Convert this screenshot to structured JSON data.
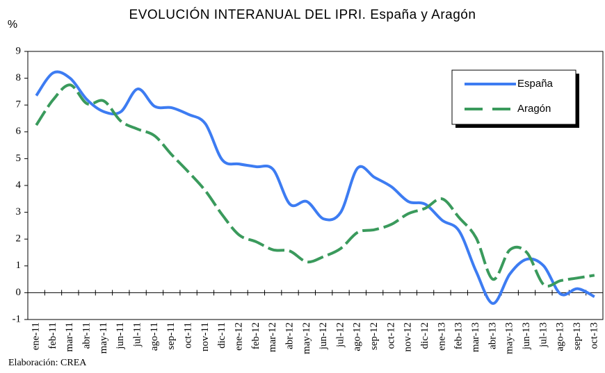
{
  "chart_data": {
    "type": "line",
    "title": "EVOLUCIÓN INTERANUAL DEL IPRI. España y Aragón",
    "y_label": "%",
    "footer": "Elaboración: CREA",
    "categories": [
      "ene-11",
      "feb-11",
      "mar-11",
      "abr-11",
      "may-11",
      "jun-11",
      "jul-11",
      "ago-11",
      "sep-11",
      "oct-11",
      "nov-11",
      "dic-11",
      "ene-12",
      "feb-12",
      "mar-12",
      "abr-12",
      "may-12",
      "jun-12",
      "jul-12",
      "ago-12",
      "sep-12",
      "oct-12",
      "nov-12",
      "dic-12",
      "ene-13",
      "feb-13",
      "mar-13",
      "abr-13",
      "may-13",
      "jun-13",
      "jul-13",
      "ago-13",
      "sep-13",
      "oct-13"
    ],
    "series": [
      {
        "name": "España",
        "color": "#3d7cf2",
        "dashed": false,
        "values": [
          7.35,
          8.2,
          8.0,
          7.2,
          6.75,
          6.75,
          7.6,
          6.95,
          6.9,
          6.65,
          6.3,
          4.95,
          4.8,
          4.7,
          4.6,
          3.3,
          3.4,
          2.75,
          3.0,
          4.65,
          4.3,
          3.95,
          3.4,
          3.3,
          2.7,
          2.3,
          0.8,
          -0.4,
          0.7,
          1.25,
          1.0,
          -0.05,
          0.15,
          -0.15
        ]
      },
      {
        "name": "Aragón",
        "color": "#3a9a5c",
        "dashed": true,
        "values": [
          6.25,
          7.2,
          7.75,
          7.05,
          7.15,
          6.4,
          6.1,
          5.85,
          5.15,
          4.5,
          3.8,
          2.9,
          2.15,
          1.9,
          1.6,
          1.55,
          1.15,
          1.35,
          1.65,
          2.25,
          2.35,
          2.55,
          2.95,
          3.15,
          3.5,
          2.8,
          2.05,
          0.5,
          1.6,
          1.5,
          0.3,
          0.45,
          0.55,
          0.65
        ]
      }
    ],
    "ylim": [
      -1,
      9
    ],
    "yticks": [
      -1,
      0,
      1,
      2,
      3,
      4,
      5,
      6,
      7,
      8,
      9
    ],
    "legend": "upper right",
    "grid": false
  }
}
